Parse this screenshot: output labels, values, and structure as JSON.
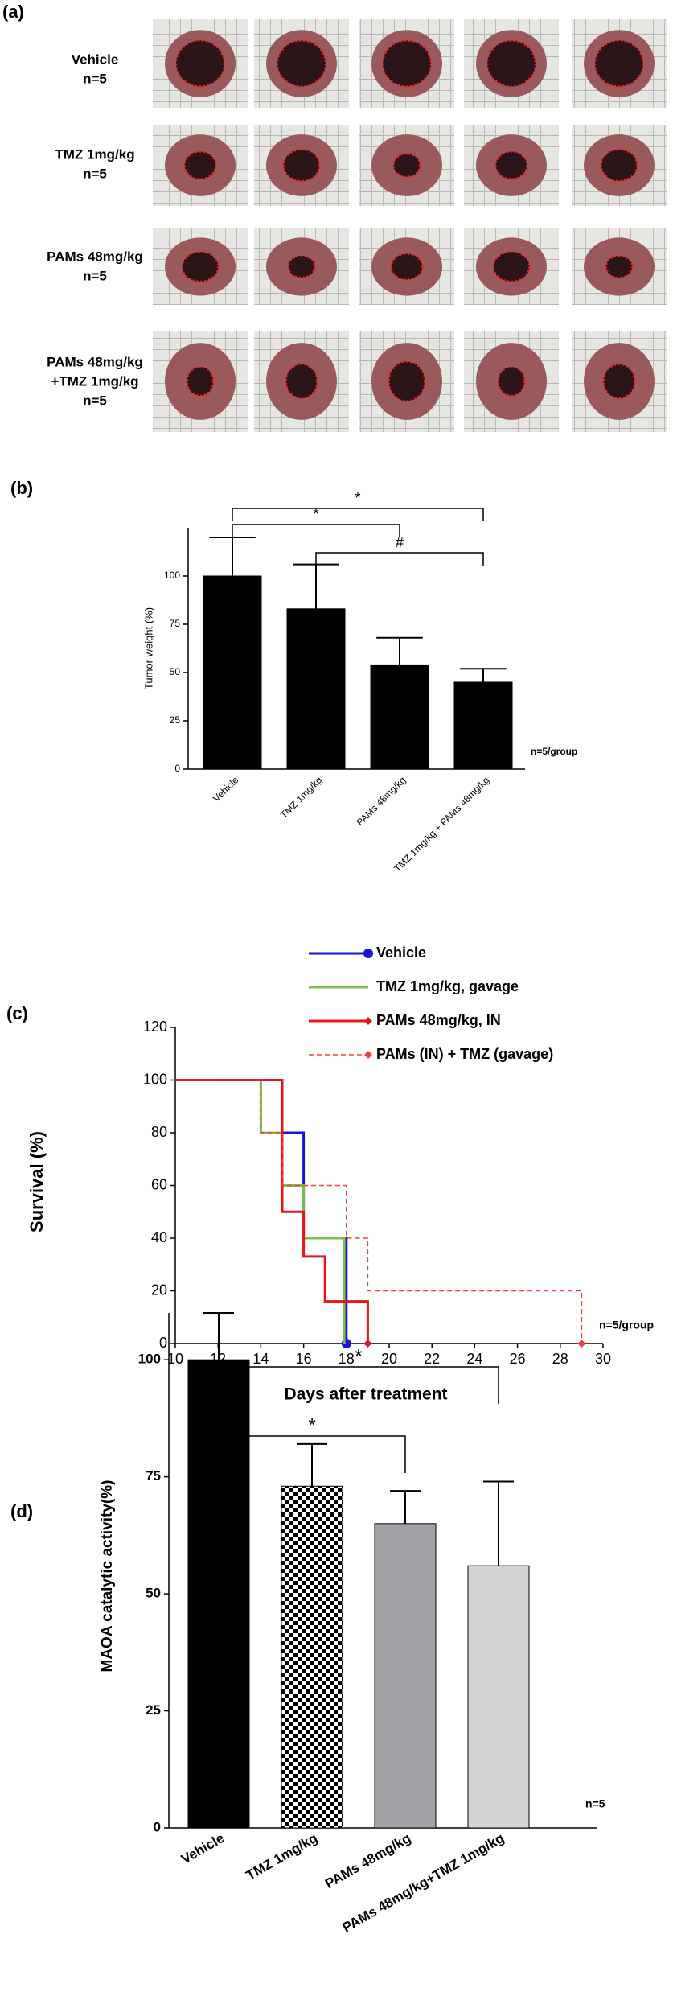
{
  "panel_a": {
    "label": "(a)",
    "rows": [
      [
        "Vehicle",
        "n=5"
      ],
      [
        "TMZ 1mg/kg",
        "n=5"
      ],
      [
        "PAMs 48mg/kg",
        "n=5"
      ],
      [
        "PAMs 48mg/kg",
        "+TMZ 1mg/kg",
        "n=5"
      ]
    ]
  },
  "chart_data": [
    {
      "type": "bar",
      "panel": "(b)",
      "y_label": "Tumor weight (%)",
      "categories": [
        "Vehicle",
        "TMZ 1mg/kg",
        "PAMs 48mg/kg",
        "TMZ 1mg/kg + PAMs 48mg/kg"
      ],
      "values": [
        100,
        83,
        54,
        45
      ],
      "errors": [
        20,
        23,
        14,
        7
      ],
      "color": "#000000",
      "ylim": [
        0,
        125
      ],
      "yticks": [
        0,
        25,
        50,
        75,
        100
      ],
      "note": "n=5/group",
      "brackets": [
        {
          "pair": [
            0,
            2
          ],
          "text": "*"
        },
        {
          "pair": [
            0,
            3
          ],
          "text": "*"
        },
        {
          "pair": [
            1,
            3
          ],
          "text": "#"
        }
      ]
    },
    {
      "type": "line",
      "panel": "(c)",
      "x_label": "Days after treatment",
      "y_label": "Survival  (%)",
      "xlim": [
        10,
        30
      ],
      "xticks": [
        10,
        12,
        14,
        16,
        18,
        20,
        22,
        24,
        26,
        28,
        30
      ],
      "ylim": [
        0,
        120
      ],
      "yticks": [
        0,
        20,
        40,
        60,
        80,
        100,
        120
      ],
      "note": "n=5/group",
      "legend": "top",
      "series": [
        {
          "name": "Vehicle",
          "color": "#1a14d4",
          "marker": "circle",
          "x": [
            10,
            15,
            15,
            16,
            16,
            18,
            18
          ],
          "values": [
            100,
            100,
            80,
            80,
            40,
            40,
            0
          ]
        },
        {
          "name": "TMZ 1mg/kg, gavage",
          "color": "#7cc04a",
          "marker": "none",
          "x": [
            10,
            14,
            14,
            15,
            15,
            16,
            16,
            17.9,
            17.9
          ],
          "values": [
            100,
            100,
            80,
            80,
            60,
            60,
            40,
            40,
            0
          ]
        },
        {
          "name": "PAMs 48mg/kg, IN",
          "color": "#e8141c",
          "marker": "diamond",
          "x": [
            10,
            15,
            15,
            16,
            16,
            17,
            17,
            19,
            19
          ],
          "values": [
            100,
            100,
            50,
            50,
            33,
            33,
            16,
            16,
            0
          ]
        },
        {
          "name": "PAMs (IN) + TMZ (gavage)",
          "color": "#f04040",
          "dash": true,
          "marker": "diamond",
          "x": [
            10,
            14,
            14,
            15,
            15,
            18,
            18,
            19,
            19,
            29,
            29
          ],
          "values": [
            100,
            100,
            80,
            80,
            60,
            60,
            40,
            40,
            20,
            20,
            0
          ]
        }
      ]
    },
    {
      "type": "bar",
      "panel": "(d)",
      "y_label": "MAOA catalytic activity(%)",
      "categories": [
        "Vehicle",
        "TMZ 1mg/kg",
        "PAMs 48mg/kg",
        "PAMs 48mg/kg+TMZ 1mg/kg"
      ],
      "values": [
        100,
        73,
        65,
        56
      ],
      "errors": [
        10,
        9,
        7,
        18
      ],
      "fills": [
        "#000000",
        "checkered",
        "#a2a2a6",
        "#d4d4d4"
      ],
      "ylim": [
        0,
        110
      ],
      "yticks": [
        0,
        25,
        50,
        75,
        100
      ],
      "note": "n=5",
      "brackets": [
        {
          "pair": [
            0,
            2
          ],
          "text": "*"
        },
        {
          "pair": [
            0,
            3
          ],
          "text": "*"
        }
      ]
    }
  ]
}
